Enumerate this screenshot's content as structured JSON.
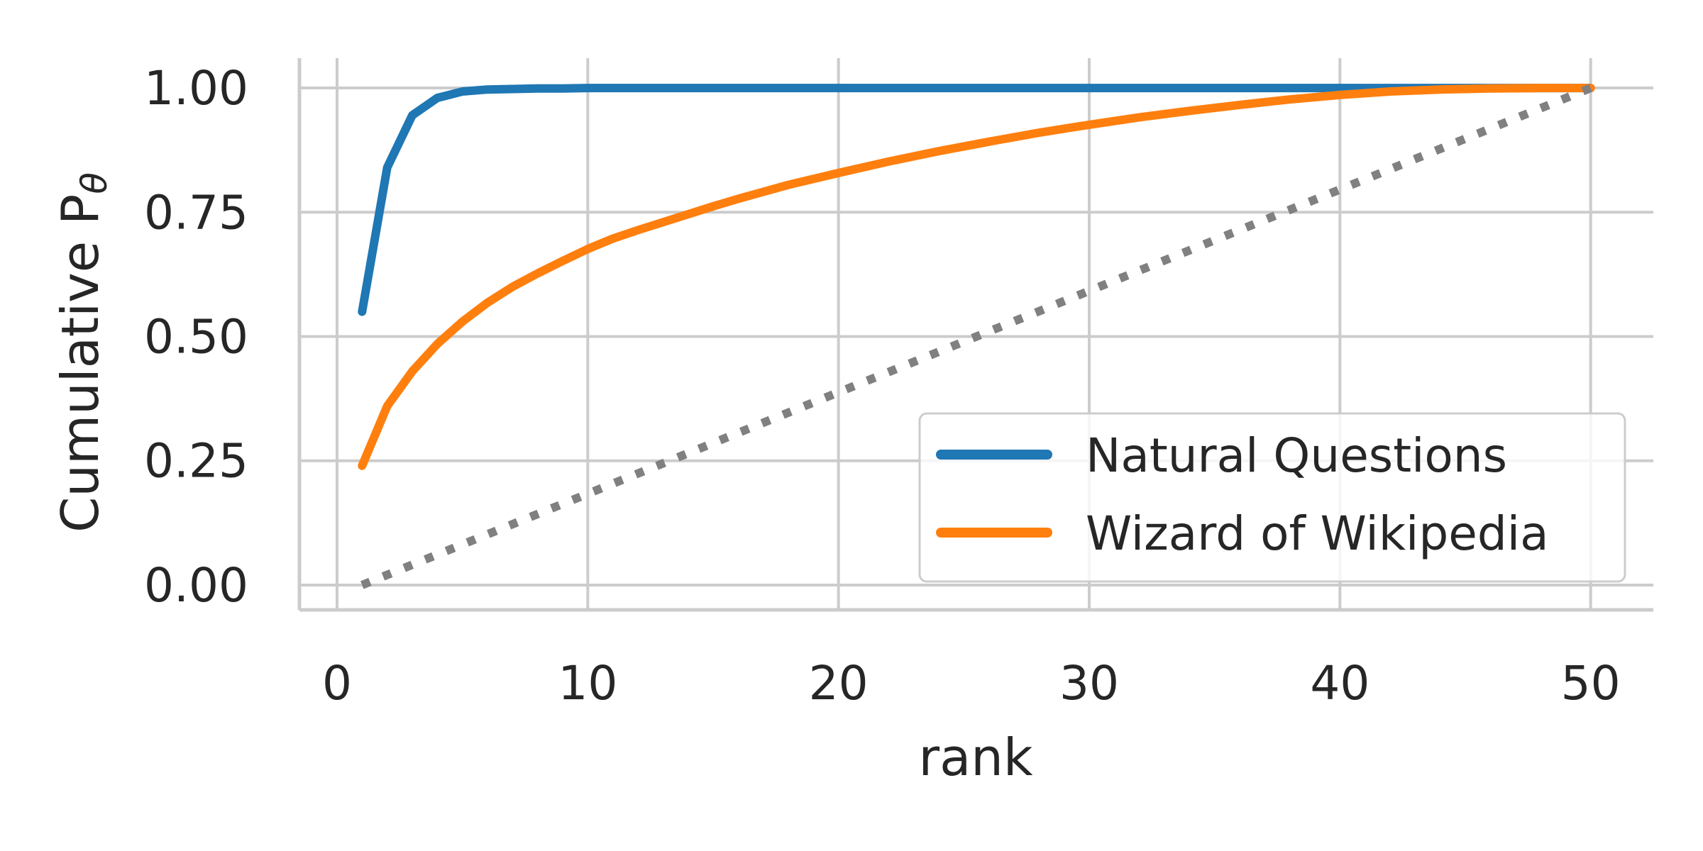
{
  "chart_data": {
    "type": "line",
    "xlabel": "rank",
    "ylabel": "Cumulative P",
    "ylabel_subscript": "θ",
    "xlim": [
      -1.5,
      52.5
    ],
    "ylim": [
      -0.05,
      1.06
    ],
    "xticks": [
      0,
      10,
      20,
      30,
      40,
      50
    ],
    "xtick_labels": [
      "0",
      "10",
      "20",
      "30",
      "40",
      "50"
    ],
    "yticks": [
      0.0,
      0.25,
      0.5,
      0.75,
      1.0
    ],
    "ytick_labels": [
      "0.00",
      "0.25",
      "0.50",
      "0.75",
      "1.00"
    ],
    "grid": true,
    "legend_position": "lower-right",
    "series": [
      {
        "name": "Natural Questions",
        "color": "#1f77b4",
        "x": [
          1,
          2,
          3,
          4,
          5,
          6,
          7,
          8,
          9,
          10,
          15,
          20,
          25,
          30,
          35,
          40,
          45,
          50
        ],
        "y": [
          0.55,
          0.84,
          0.945,
          0.98,
          0.993,
          0.997,
          0.998,
          0.999,
          0.999,
          1.0,
          1.0,
          1.0,
          1.0,
          1.0,
          1.0,
          1.0,
          1.0,
          1.0
        ]
      },
      {
        "name": "Wizard of Wikipedia",
        "color": "#ff7f0e",
        "x": [
          1,
          2,
          3,
          4,
          5,
          6,
          7,
          8,
          9,
          10,
          11,
          12,
          13,
          14,
          15,
          16,
          17,
          18,
          19,
          20,
          22,
          24,
          26,
          28,
          30,
          32,
          34,
          36,
          38,
          40,
          42,
          44,
          46,
          48,
          50
        ],
        "y": [
          0.24,
          0.36,
          0.43,
          0.485,
          0.53,
          0.568,
          0.6,
          0.627,
          0.652,
          0.676,
          0.697,
          0.714,
          0.73,
          0.746,
          0.762,
          0.777,
          0.791,
          0.805,
          0.817,
          0.829,
          0.852,
          0.873,
          0.892,
          0.91,
          0.926,
          0.941,
          0.954,
          0.966,
          0.977,
          0.986,
          0.993,
          0.997,
          0.999,
          1.0,
          1.0
        ]
      },
      {
        "name": "",
        "color": "#808080",
        "style": "dotted",
        "x": [
          1,
          50
        ],
        "y": [
          0.0,
          1.0
        ]
      }
    ]
  }
}
